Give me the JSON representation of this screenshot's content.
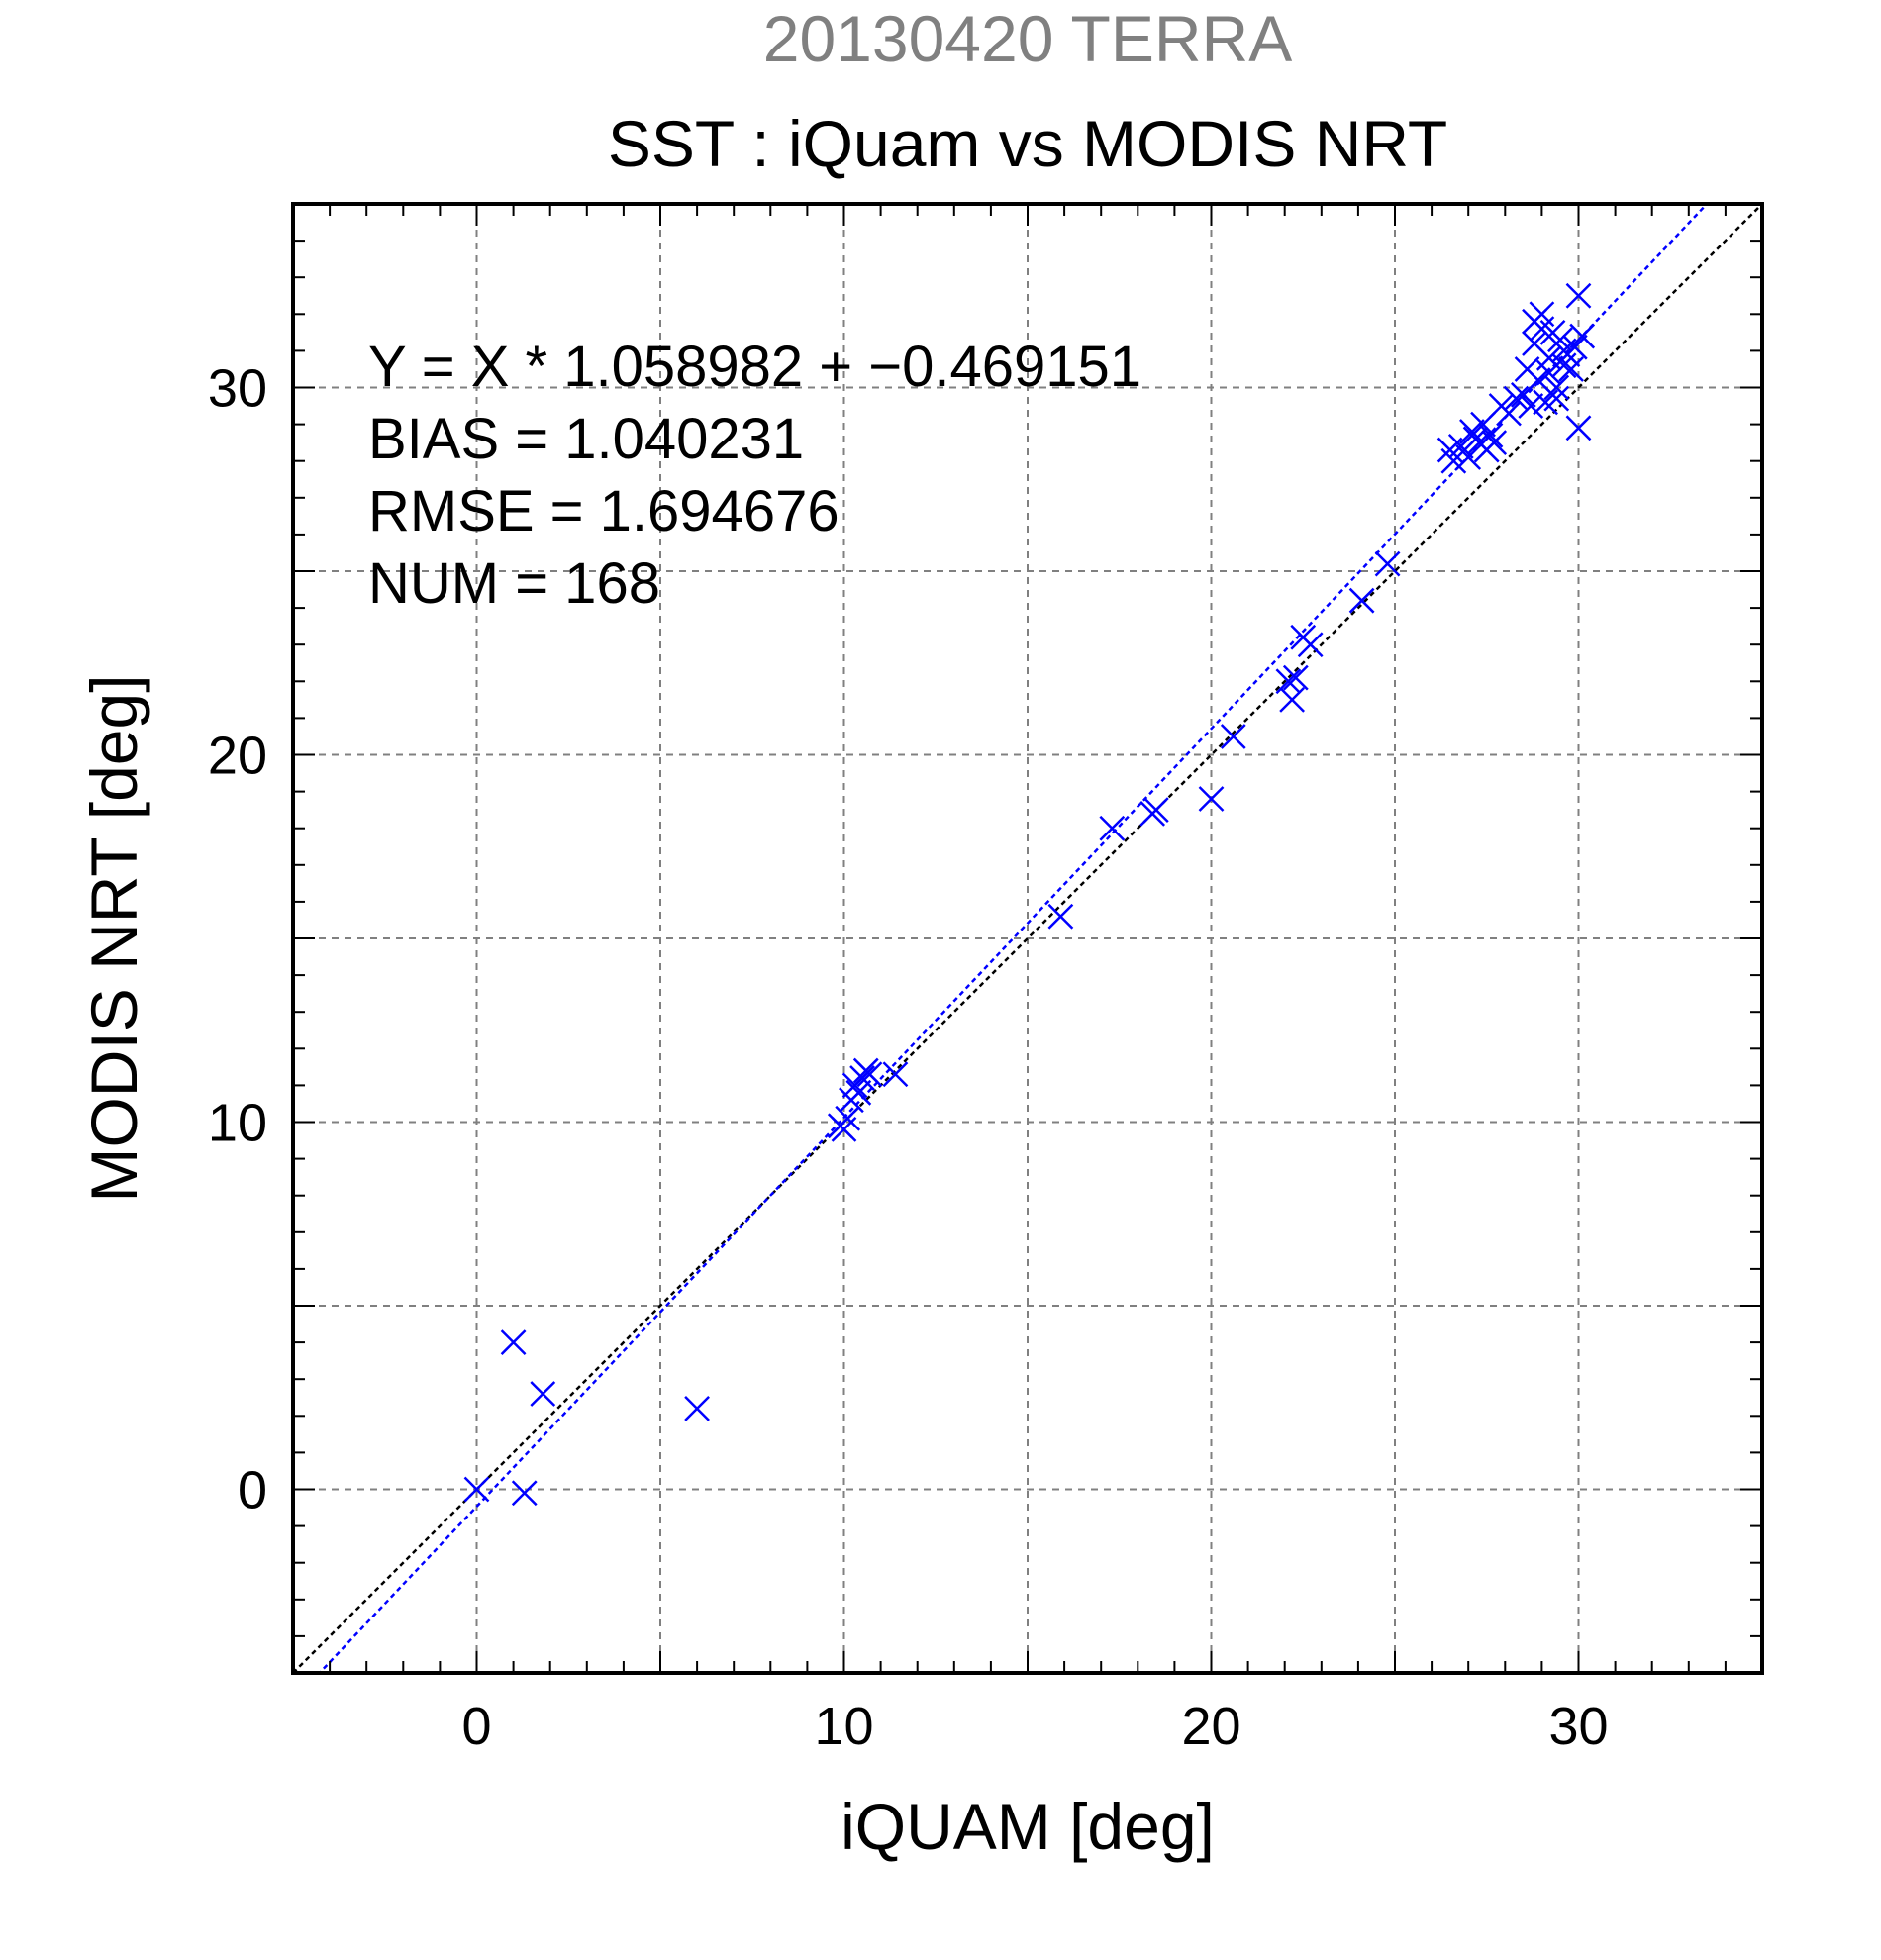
{
  "chart_data": {
    "type": "scatter",
    "suptitle": "20130420 TERRA",
    "title": "SST : iQuam vs MODIS NRT",
    "xlabel": "iQUAM [deg]",
    "ylabel": "MODIS NRT [deg]",
    "xlim": [
      -5,
      35
    ],
    "ylim": [
      -5,
      35
    ],
    "xticks": [
      0,
      10,
      20,
      30
    ],
    "yticks": [
      0,
      10,
      20,
      30
    ],
    "grid": true,
    "annotations": [
      "Y = X * 1.058982 + −0.469151",
      "BIAS = 1.040231",
      "RMSE = 1.694676",
      "NUM = 168"
    ],
    "regression": {
      "slope": 1.058982,
      "intercept": -0.469151
    },
    "colors": {
      "points": "#0000ff",
      "regression_line": "#0000ff",
      "identity_line": "#000000",
      "suptitle": "#808080",
      "grid": "#808080"
    },
    "series": [
      {
        "marker": "x",
        "x": [
          0.0,
          1.0,
          1.3,
          1.8,
          6.0,
          9.9,
          10.0,
          10.1,
          10.2,
          10.3,
          10.4,
          10.5,
          10.6,
          10.7,
          11.4,
          15.9,
          17.3,
          18.4,
          18.5,
          20.0,
          20.6,
          22.1,
          22.2,
          22.3,
          22.5,
          22.7,
          24.1,
          24.8,
          26.5,
          26.6,
          26.8,
          27.0,
          27.1,
          27.2,
          27.3,
          27.4,
          27.5,
          27.6,
          27.7,
          27.9,
          28.1,
          28.3,
          28.5,
          28.6,
          28.7,
          28.8,
          28.9,
          29.0,
          29.1,
          29.2,
          29.3,
          29.4,
          29.5,
          29.6,
          29.7,
          29.8,
          29.9,
          30.0,
          30.1,
          28.8,
          29.0,
          29.2,
          29.4,
          29.6,
          30.0
        ],
        "y": [
          0.0,
          4.0,
          -0.1,
          2.6,
          2.2,
          9.9,
          9.8,
          10.1,
          10.6,
          11.0,
          10.8,
          11.2,
          11.4,
          11.3,
          11.3,
          15.6,
          18.0,
          18.4,
          18.5,
          18.8,
          20.5,
          22.0,
          21.5,
          22.1,
          23.2,
          23.0,
          24.2,
          25.2,
          28.3,
          28.0,
          28.4,
          28.1,
          28.8,
          28.6,
          28.5,
          29.0,
          28.3,
          28.7,
          28.5,
          29.5,
          29.3,
          29.7,
          29.8,
          30.5,
          29.5,
          31.8,
          30.2,
          32.0,
          29.6,
          30.8,
          31.5,
          30.0,
          31.3,
          30.6,
          30.9,
          30.5,
          31.1,
          28.9,
          31.4,
          31.2,
          31.6,
          30.4,
          29.7,
          31.0,
          32.5
        ]
      }
    ]
  }
}
